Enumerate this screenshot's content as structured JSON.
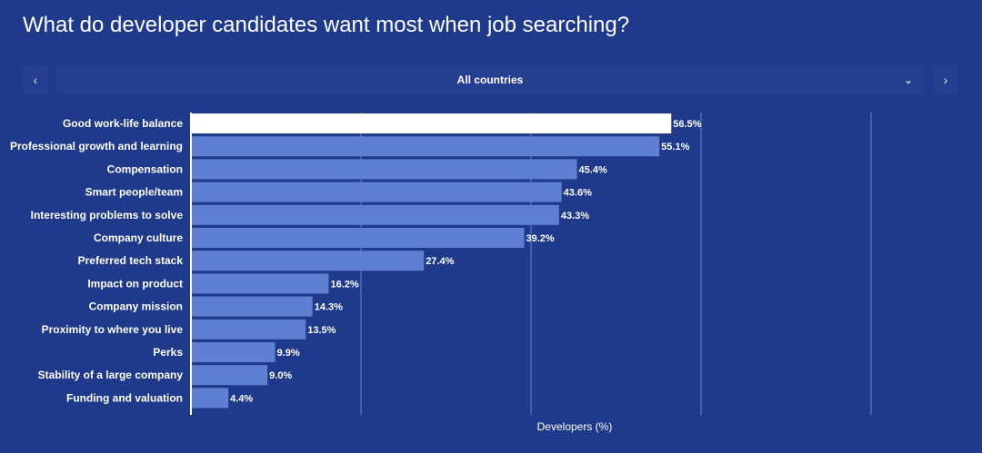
{
  "title": "What do developer candidates want most when job searching?",
  "filter": {
    "selected": "All countries",
    "prev_icon": "chevron-left-icon",
    "next_icon": "chevron-right-icon",
    "dropdown_icon": "chevron-down-icon"
  },
  "colors": {
    "background": "#1f3a8a",
    "bar": "#5f7fd3",
    "highlight_bar": "#ffffff",
    "grid": "#6c84c9"
  },
  "chart_data": {
    "type": "bar",
    "orientation": "horizontal",
    "categories": [
      "Good work-life balance",
      "Professional growth and learning",
      "Compensation",
      "Smart people/team",
      "Interesting problems to solve",
      "Company culture",
      "Preferred tech stack",
      "Impact on product",
      "Company mission",
      "Proximity to where you live",
      "Perks",
      "Stability of a large company",
      "Funding and valuation"
    ],
    "values": [
      56.5,
      55.1,
      45.4,
      43.6,
      43.3,
      39.2,
      27.4,
      16.2,
      14.3,
      13.5,
      9.9,
      9.0,
      4.4
    ],
    "value_labels": [
      "56.5%",
      "55.1%",
      "45.4%",
      "43.6%",
      "43.3%",
      "39.2%",
      "27.4%",
      "16.2%",
      "14.3%",
      "13.5%",
      "9.9%",
      "9.0%",
      "4.4%"
    ],
    "highlighted_index": 0,
    "xlabel": "Developers (%)",
    "xlim": [
      0,
      80
    ],
    "grid": true
  }
}
